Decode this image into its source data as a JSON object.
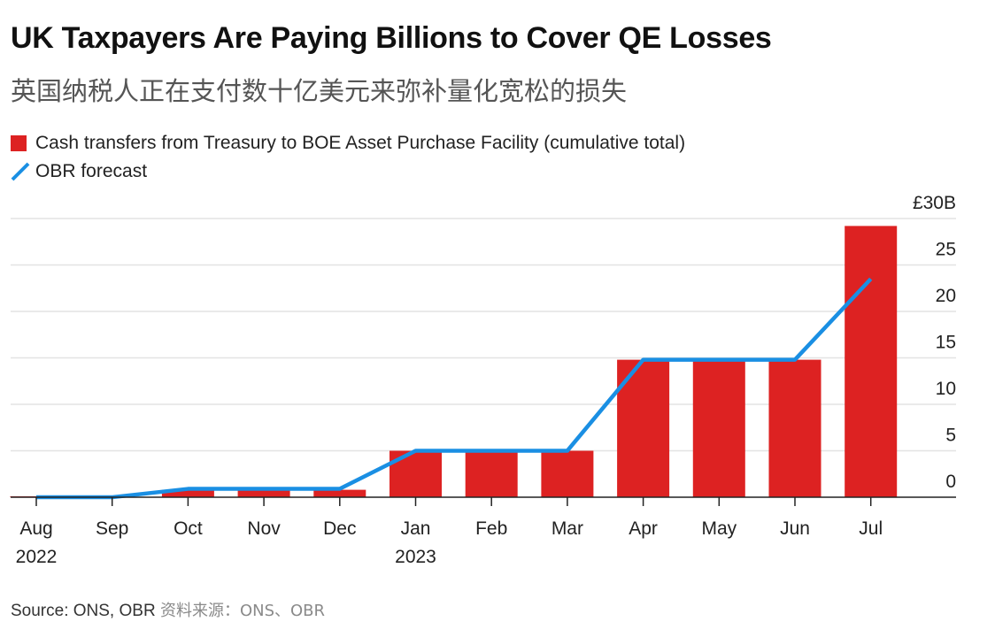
{
  "title": "UK Taxpayers Are Paying Billions to Cover QE Losses",
  "subtitle": "英国纳税人正在支付数十亿美元来弥补量化宽松的损失",
  "legend": {
    "bar_label": "Cash transfers from Treasury to BOE Asset Purchase Facility (cumulative total)",
    "line_label": "OBR forecast"
  },
  "source": {
    "en": "Source: ONS, OBR",
    "cn": "资料来源：ONS、OBR"
  },
  "chart_data": {
    "type": "bar",
    "categories": [
      "Aug",
      "Sep",
      "Oct",
      "Nov",
      "Dec",
      "Jan",
      "Feb",
      "Mar",
      "Apr",
      "May",
      "Jun",
      "Jul"
    ],
    "category_years": [
      "2022",
      "",
      "",
      "",
      "",
      "2023",
      "",
      "",
      "",
      "",
      "",
      ""
    ],
    "series": [
      {
        "name": "Cash transfers from Treasury to BOE Asset Purchase Facility (cumulative total)",
        "type": "bar",
        "color": "#dd2222",
        "values": [
          0.1,
          0,
          0.8,
          0.8,
          0.8,
          5.0,
          5.0,
          5.0,
          14.8,
          14.8,
          14.8,
          29.2
        ]
      },
      {
        "name": "OBR forecast",
        "type": "line",
        "color": "#1a8fe3",
        "values": [
          0,
          0,
          0.9,
          0.9,
          0.9,
          5.0,
          5.0,
          5.0,
          14.8,
          14.8,
          14.8,
          23.5
        ]
      }
    ],
    "y_ticks": [
      "0",
      "5",
      "10",
      "15",
      "20",
      "25",
      "£30B"
    ],
    "y_tick_values": [
      0,
      5,
      10,
      15,
      20,
      25,
      30
    ],
    "ylim": [
      0,
      30
    ],
    "grid": true,
    "y_axis_position": "right",
    "legend_position": "top-left"
  }
}
